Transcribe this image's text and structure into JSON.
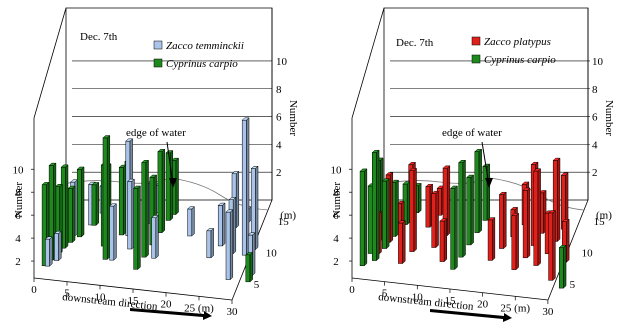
{
  "colors": {
    "zacco_temminckii": "#a9c4e8",
    "zacco_platypus": "#e0211b",
    "cyprinus_carpio": "#1e8a1e",
    "axis": "#000000"
  },
  "chart_data": [
    {
      "type": "bar3d",
      "panel": "left",
      "date_label": "Dec. 7th",
      "legend": [
        "Zacco temminckii",
        "Cyprinus carpio"
      ],
      "xlabel": "downstream direction",
      "x_ticks": [
        "0",
        "5",
        "10",
        "15",
        "20",
        "25 (m)",
        "30"
      ],
      "y_ticks": [
        "5",
        "10",
        "15",
        "(m)"
      ],
      "zlabel": "Number",
      "z_ticks_left": [
        "2",
        "4",
        "6",
        "8",
        "10"
      ],
      "z_ticks_right": [
        "2",
        "4",
        "6",
        "8",
        "10"
      ],
      "annotation": "edge of water",
      "series": [
        {
          "name": "Zacco temminckii",
          "points": [
            [
              1,
              2,
              2
            ],
            [
              1,
              5,
              3
            ],
            [
              2,
              3,
              2
            ],
            [
              3,
              7,
              4
            ],
            [
              5,
              9,
              3
            ],
            [
              6,
              11,
              2
            ],
            [
              10,
              4,
              4
            ],
            [
              11,
              8,
              7
            ],
            [
              12,
              6,
              5
            ],
            [
              13,
              10,
              3
            ],
            [
              14,
              12,
              2
            ],
            [
              16,
              5,
              3
            ],
            [
              20,
              9,
              2
            ],
            [
              24,
              6,
              2
            ],
            [
              25,
              8,
              3
            ],
            [
              26,
              11,
              4
            ],
            [
              27,
              7,
              4
            ],
            [
              27.5,
              12,
              1
            ],
            [
              28,
              3,
              5
            ],
            [
              29,
              7,
              10
            ],
            [
              30,
              8,
              6
            ],
            [
              31,
              4,
              3
            ]
          ]
        },
        {
          "name": "Cyprinus carpio",
          "points": [
            [
              0.5,
              2,
              6
            ],
            [
              1.2,
              3,
              7
            ],
            [
              1.8,
              4,
              5
            ],
            [
              2.3,
              5,
              6
            ],
            [
              3,
              6,
              4
            ],
            [
              4,
              7,
              5
            ],
            [
              5.5,
              9,
              3
            ],
            [
              7,
              10,
              4
            ],
            [
              8,
              6,
              6
            ],
            [
              9,
              4,
              9
            ],
            [
              10,
              8,
              5
            ],
            [
              10.5,
              9,
              5
            ],
            [
              14,
              3,
              6
            ],
            [
              14.5,
              5,
              7
            ],
            [
              15,
              7,
              5
            ],
            [
              15.5,
              9,
              6
            ],
            [
              16,
              11,
              5
            ],
            [
              16.5,
              12,
              4
            ],
            [
              31,
              3,
              2
            ]
          ]
        }
      ]
    },
    {
      "type": "bar3d",
      "panel": "right",
      "date_label": "Dec. 7th",
      "legend": [
        "Zacco platypus",
        "Cyprinus carpio"
      ],
      "xlabel": "downstream direction",
      "x_ticks": [
        "0",
        "5",
        "10",
        "15",
        "20",
        "25 (m)",
        "30"
      ],
      "y_ticks": [
        "5",
        "10",
        "15",
        "(m)"
      ],
      "zlabel": "Number",
      "z_ticks_left": [
        "2",
        "4",
        "6",
        "8",
        "10"
      ],
      "z_ticks_right": [
        "2",
        "4",
        "6",
        "8",
        "10"
      ],
      "annotation": "edge of water",
      "series": [
        {
          "name": "Zacco platypus",
          "points": [
            [
              2,
              4,
              3
            ],
            [
              3,
              6,
              5
            ],
            [
              4,
              8,
              2
            ],
            [
              5,
              10,
              4
            ],
            [
              6,
              3,
              3
            ],
            [
              7,
              5,
              6
            ],
            [
              8,
              9,
              3
            ],
            [
              9,
              11,
              2
            ],
            [
              10,
              6,
              4
            ],
            [
              11,
              8,
              5
            ],
            [
              12,
              4,
              3
            ],
            [
              19,
              5,
              3
            ],
            [
              20,
              7,
              4
            ],
            [
              21,
              9,
              2
            ],
            [
              22,
              11,
              3
            ],
            [
              23,
              4,
              4
            ],
            [
              24,
              6,
              5
            ],
            [
              24.5,
              8,
              6
            ],
            [
              25,
              10,
              3
            ],
            [
              26,
              5,
              7
            ],
            [
              27,
              7,
              3
            ],
            [
              27.5,
              9,
              6
            ],
            [
              28,
              11,
              4
            ],
            [
              29,
              3,
              5
            ],
            [
              30,
              6,
              3
            ]
          ]
        },
        {
          "name": "Cyprinus carpio",
          "points": [
            [
              0.5,
              2,
              7
            ],
            [
              1,
              4,
              5
            ],
            [
              1.5,
              6,
              6
            ],
            [
              2,
              3,
              8
            ],
            [
              2.8,
              5,
              5
            ],
            [
              3.5,
              7,
              4
            ],
            [
              4.5,
              9,
              3
            ],
            [
              5.5,
              11,
              2
            ],
            [
              14,
              3,
              6
            ],
            [
              14.5,
              5,
              7
            ],
            [
              15,
              7,
              5
            ],
            [
              15.5,
              9,
              6
            ],
            [
              16,
              11,
              4
            ],
            [
              31,
              2,
              3
            ]
          ]
        }
      ]
    }
  ]
}
